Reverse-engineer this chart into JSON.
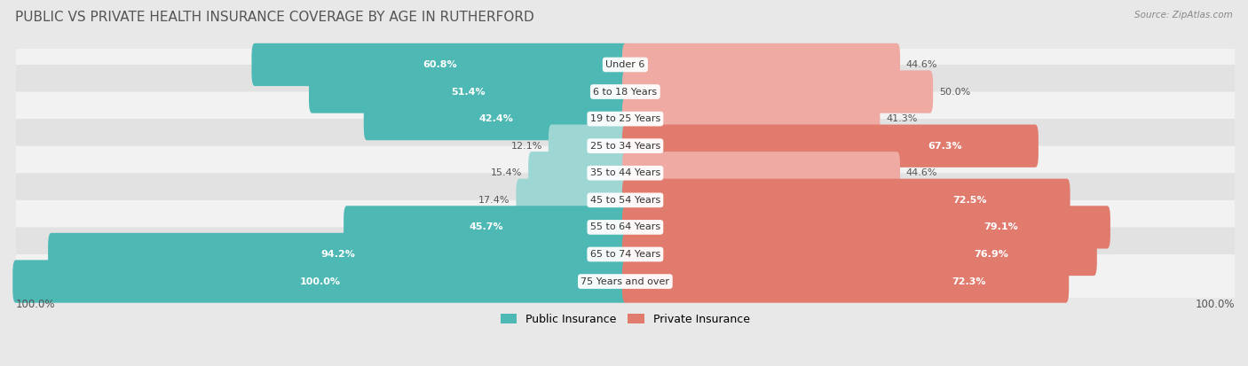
{
  "title": "PUBLIC VS PRIVATE HEALTH INSURANCE COVERAGE BY AGE IN RUTHERFORD",
  "source": "Source: ZipAtlas.com",
  "categories": [
    "Under 6",
    "6 to 18 Years",
    "19 to 25 Years",
    "25 to 34 Years",
    "35 to 44 Years",
    "45 to 54 Years",
    "55 to 64 Years",
    "65 to 74 Years",
    "75 Years and over"
  ],
  "public_values": [
    60.8,
    51.4,
    42.4,
    12.1,
    15.4,
    17.4,
    45.7,
    94.2,
    100.0
  ],
  "private_values": [
    44.6,
    50.0,
    41.3,
    67.3,
    44.6,
    72.5,
    79.1,
    76.9,
    72.3
  ],
  "public_color_strong": "#4db8b4",
  "public_color_light": "#9dd6d3",
  "private_color_strong": "#e07b6e",
  "private_color_light": "#eeaaa3",
  "bar_height": 0.58,
  "background_color": "#e8e8e8",
  "row_bg_odd": "#f2f2f2",
  "row_bg_even": "#e2e2e2",
  "title_fontsize": 11,
  "label_fontsize": 8,
  "value_fontsize": 8,
  "legend_fontsize": 9,
  "axis_max": 100.0
}
